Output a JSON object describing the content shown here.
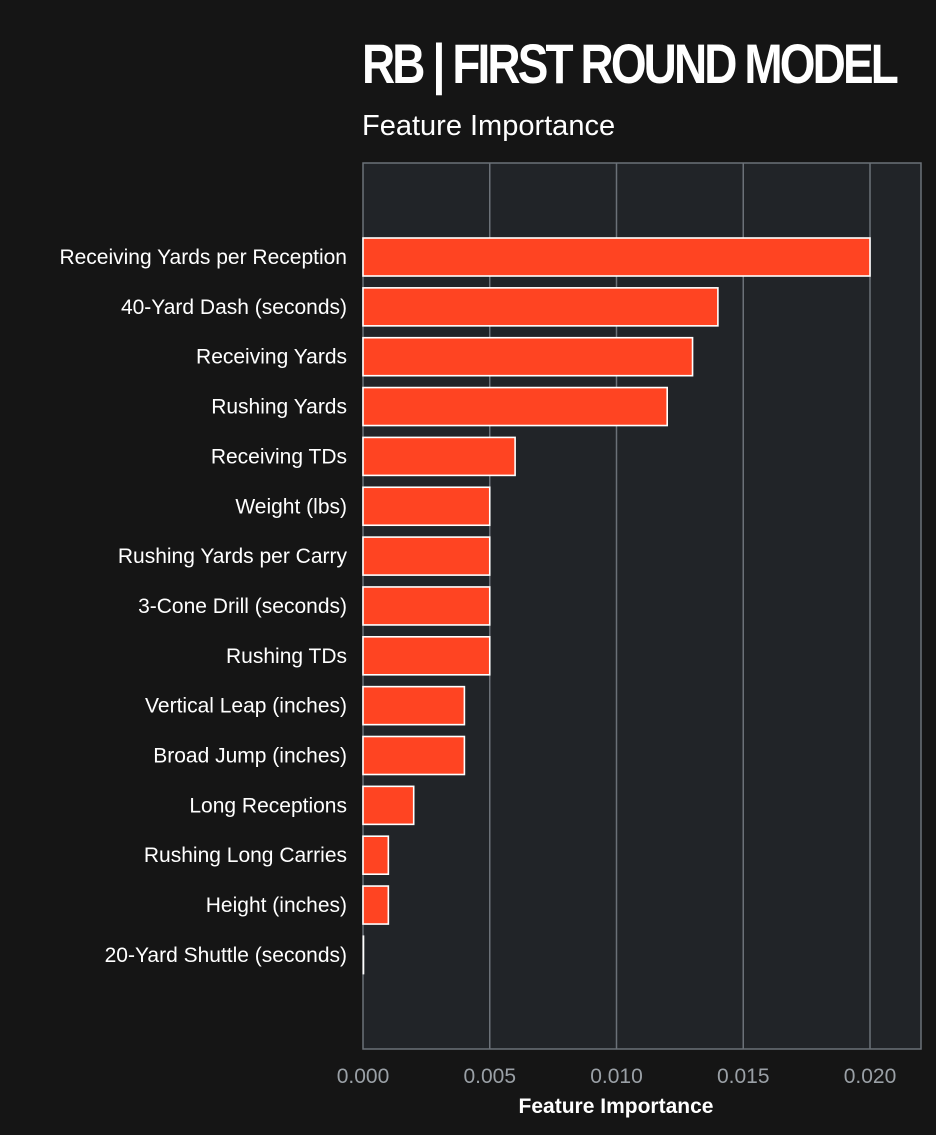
{
  "chart_data": {
    "type": "bar",
    "orientation": "horizontal",
    "title": "RB | FIRST ROUND MODEL",
    "subtitle": "Feature Importance",
    "xlabel": "Feature Importance",
    "ylabel": "",
    "xlim": [
      0,
      0.022
    ],
    "xticks": [
      0,
      0.005,
      0.01,
      0.015,
      0.02
    ],
    "xtick_labels": [
      "0.000",
      "0.005",
      "0.010",
      "0.015",
      "0.020"
    ],
    "grid": "vertical",
    "categories": [
      "Receiving Yards per Reception",
      "40-Yard Dash (seconds)",
      "Receiving Yards",
      "Rushing Yards",
      "Receiving TDs",
      "Weight (lbs)",
      "Rushing Yards per Carry",
      "3-Cone Drill (seconds)",
      "Rushing TDs",
      "Vertical Leap (inches)",
      "Broad Jump (inches)",
      "Long Receptions",
      "Rushing Long Carries",
      "Height (inches)",
      "20-Yard Shuttle (seconds)"
    ],
    "values": [
      0.02,
      0.014,
      0.013,
      0.012,
      0.006,
      0.005,
      0.005,
      0.005,
      0.005,
      0.004,
      0.004,
      0.002,
      0.001,
      0.001,
      0.0
    ],
    "colors": {
      "bar": "#ff4422",
      "bar_edge": "#ffffff",
      "plot_bg": "#212428",
      "page_bg": "#151515",
      "grid": "#6b7178",
      "text": "#ffffff",
      "tick_text": "#9aa0a6"
    }
  }
}
